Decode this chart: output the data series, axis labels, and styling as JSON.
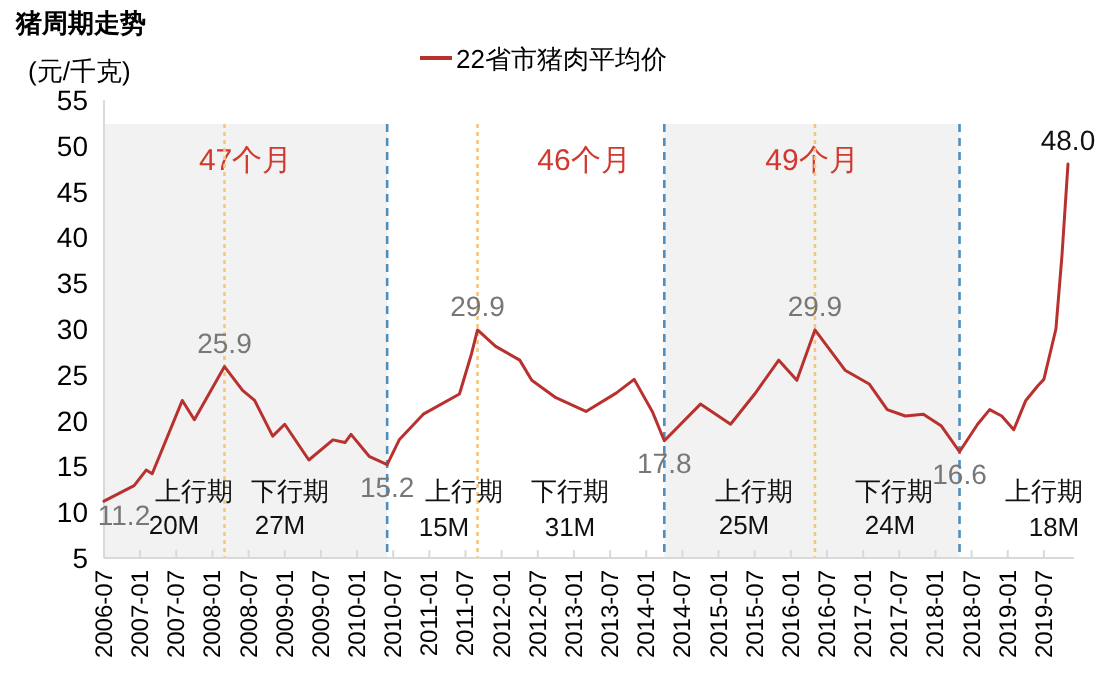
{
  "chart_data": {
    "type": "line",
    "title": "猪周期走势",
    "ylabel": "(元/千克)",
    "legend": "top",
    "marker": "none",
    "line_style": "solid",
    "ylim": [
      5,
      55
    ],
    "yticks": [
      5,
      10,
      15,
      20,
      25,
      30,
      35,
      40,
      45,
      50,
      55
    ],
    "xlim": [
      "2006-07",
      "2019-12"
    ],
    "xticks": [
      "2006-07",
      "2007-01",
      "2007-07",
      "2008-01",
      "2008-07",
      "2009-01",
      "2009-07",
      "2010-01",
      "2010-07",
      "2011-01",
      "2011-07",
      "2012-01",
      "2012-07",
      "2013-01",
      "2013-07",
      "2014-01",
      "2014-07",
      "2015-01",
      "2015-07",
      "2016-01",
      "2016-07",
      "2017-01",
      "2017-07",
      "2018-01",
      "2018-07",
      "2019-01",
      "2019-07"
    ],
    "x": [
      "2006-07",
      "2006-12",
      "2007-02",
      "2007-03",
      "2007-08",
      "2007-10",
      "2008-03",
      "2008-06",
      "2008-08",
      "2008-11",
      "2009-01",
      "2009-05",
      "2009-09",
      "2009-11",
      "2009-12",
      "2010-03",
      "2010-06",
      "2010-08",
      "2010-12",
      "2011-06",
      "2011-08",
      "2011-09",
      "2011-12",
      "2012-04",
      "2012-06",
      "2012-10",
      "2013-03",
      "2013-08",
      "2013-11",
      "2014-02",
      "2014-04",
      "2014-10",
      "2015-03",
      "2015-07",
      "2015-11",
      "2016-02",
      "2016-05",
      "2016-10",
      "2017-02",
      "2017-05",
      "2017-08",
      "2017-11",
      "2018-02",
      "2018-05",
      "2018-08",
      "2018-10",
      "2018-12",
      "2019-02",
      "2019-04",
      "2019-06",
      "2019-07",
      "2019-09",
      "2019-10",
      "2019-11"
    ],
    "series": [
      {
        "name": "22省市猪肉平均价",
        "color": "#b8312f",
        "values": [
          11.2,
          12.9,
          14.6,
          14.2,
          22.2,
          20.1,
          25.9,
          23.3,
          22.2,
          18.3,
          19.6,
          15.7,
          17.9,
          17.6,
          18.5,
          16.1,
          15.2,
          17.9,
          20.7,
          22.9,
          27.3,
          29.9,
          28.1,
          26.6,
          24.4,
          22.5,
          21.0,
          23.0,
          24.5,
          21.0,
          17.8,
          21.8,
          19.6,
          22.9,
          26.6,
          24.4,
          29.9,
          25.5,
          24.0,
          21.2,
          20.5,
          20.7,
          19.4,
          16.6,
          19.6,
          21.2,
          20.5,
          19.0,
          22.2,
          23.8,
          24.5,
          30.0,
          38.0,
          48.0
        ],
        "value_labels": [
          "11.2",
          null,
          null,
          null,
          null,
          null,
          "25.9",
          null,
          null,
          null,
          null,
          null,
          null,
          null,
          null,
          null,
          "15.2",
          null,
          null,
          null,
          null,
          "29.9",
          null,
          null,
          null,
          null,
          null,
          null,
          null,
          null,
          "17.8",
          null,
          null,
          null,
          null,
          null,
          "29.9",
          null,
          null,
          null,
          null,
          null,
          null,
          "16.6",
          null,
          null,
          null,
          null,
          null,
          null,
          null,
          null,
          null,
          "48.0"
        ]
      }
    ],
    "bands": [
      {
        "axis": "x",
        "from": "2006-07",
        "to": "2010-06",
        "label": "47个月",
        "color": "#f2f2f2"
      },
      {
        "axis": "x",
        "from": "2014-04",
        "to": "2018-05",
        "label": "49个月",
        "color": "#f2f2f2"
      }
    ],
    "ref_lines": [
      {
        "axis": "x",
        "value": "2010-06",
        "color": "#4f8fc0",
        "line_style": "dashed"
      },
      {
        "axis": "x",
        "value": "2014-04",
        "color": "#4f8fc0",
        "line_style": "dashed"
      },
      {
        "axis": "x",
        "value": "2018-05",
        "color": "#4f8fc0",
        "line_style": "dashed"
      },
      {
        "axis": "x",
        "value": "2008-03",
        "color": "#f5c77e",
        "line_style": "dotted"
      },
      {
        "axis": "x",
        "value": "2011-09",
        "color": "#f5c77e",
        "line_style": "dotted"
      },
      {
        "axis": "x",
        "value": "2016-05",
        "color": "#f5c77e",
        "line_style": "dotted"
      }
    ],
    "annotations": [
      "46个月",
      "上行期",
      "20M",
      "下行期",
      "27M",
      "上行期",
      "15M",
      "下行期",
      "31M",
      "上行期",
      "25M",
      "下行期",
      "24M",
      "上行期",
      "18M"
    ]
  }
}
